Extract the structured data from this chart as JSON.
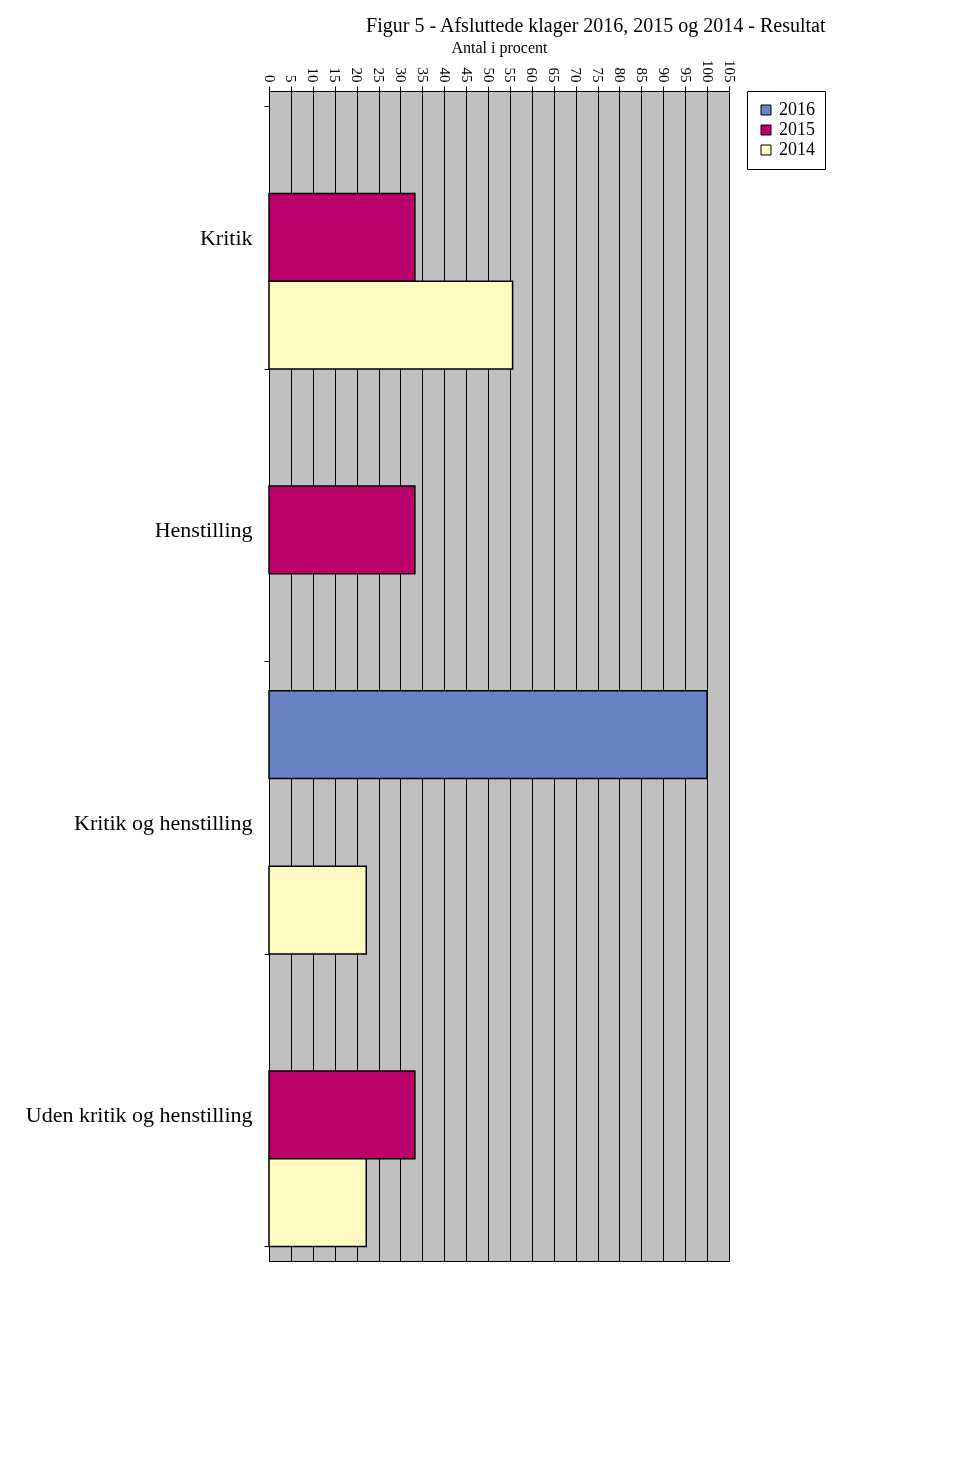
{
  "chart_data": {
    "type": "bar",
    "orientation": "horizontal",
    "title": "Figur 5 - Afsluttede klager 2016, 2015 og 2014 - Resultat",
    "xlabel": "Antal i procent",
    "categories": [
      "Kritik",
      "Henstilling",
      "Kritik og henstilling",
      "Uden kritik og henstilling"
    ],
    "series": [
      {
        "name": "2016",
        "color": "#6783c4",
        "values": [
          null,
          null,
          100,
          null
        ]
      },
      {
        "name": "2015",
        "color": "#bb006b",
        "values": [
          33.3,
          33.3,
          null,
          33.3
        ]
      },
      {
        "name": "2014",
        "color": "#fffac0",
        "values": [
          55.6,
          null,
          22.2,
          22.2
        ]
      }
    ],
    "xlim": [
      0,
      105
    ],
    "xticks": [
      0,
      5,
      10,
      15,
      20,
      25,
      30,
      35,
      40,
      45,
      50,
      55,
      60,
      65,
      70,
      75,
      80,
      85,
      90,
      95,
      100,
      105
    ],
    "grid": "x",
    "legend": "top right"
  }
}
